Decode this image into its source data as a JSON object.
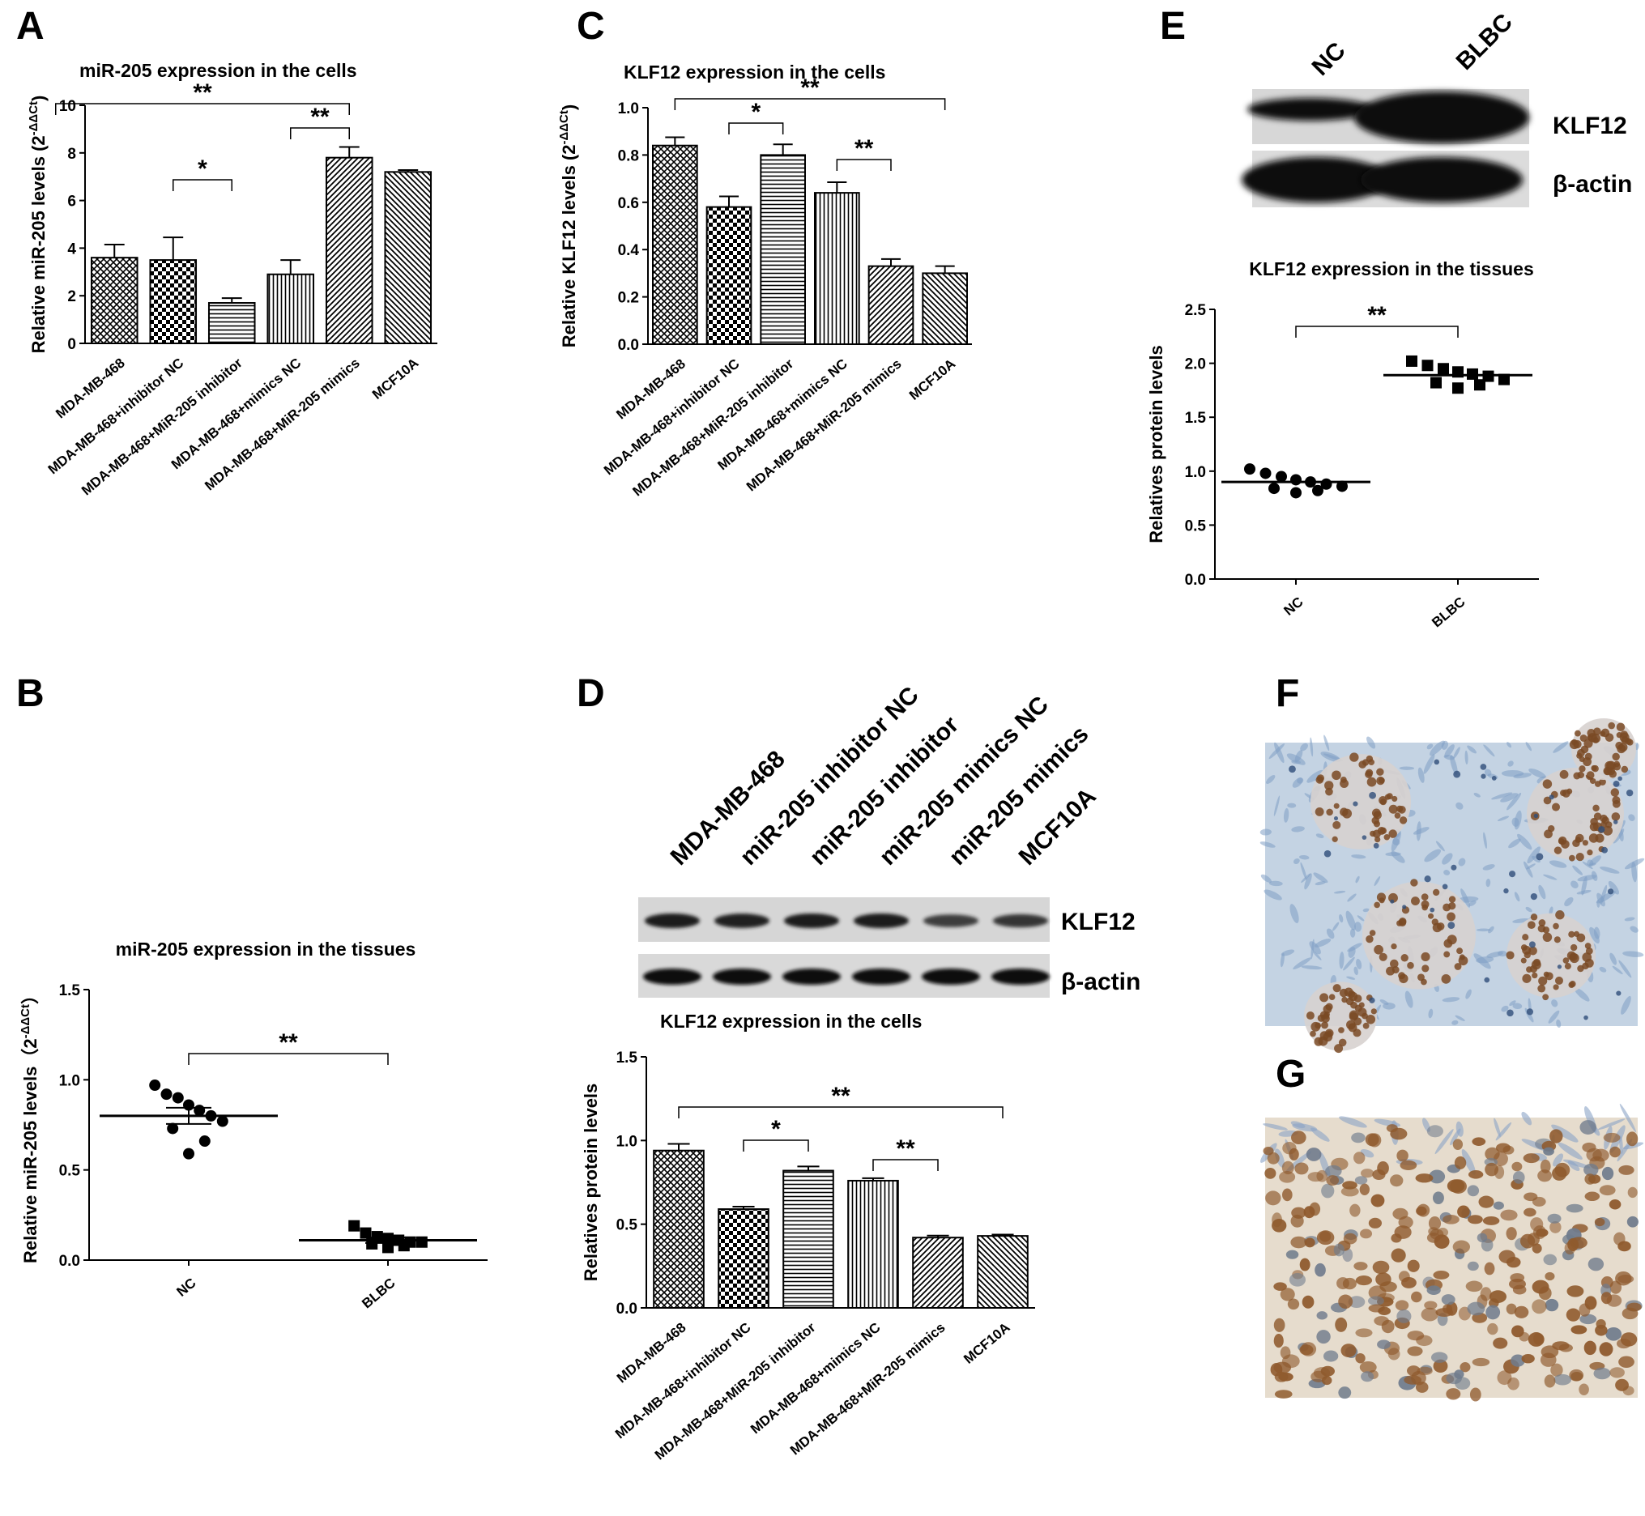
{
  "panels": {
    "A": {
      "letter": "A",
      "chart_data": {
        "type": "bar",
        "title": "miR-205 expression in the cells",
        "ylabel": "Relative miR-205 levels (2",
        "ylabel_sup": "-ΔΔCt",
        "ylabel_close": ")",
        "categories": [
          "MDA-MB-468",
          "MDA-MB-468+inhibitor NC",
          "MDA-MB-468+MiR-205 inhibitor",
          "MDA-MB-468+mimics NC",
          "MDA-MB-468+MiR-205 mimics",
          "MCF10A"
        ],
        "values": [
          3.6,
          3.5,
          1.7,
          2.9,
          7.8,
          7.2
        ],
        "errors": [
          0.55,
          0.95,
          0.2,
          0.6,
          0.45,
          0.08
        ],
        "ylim": [
          0,
          10
        ],
        "yticks": [
          "0",
          "2",
          "4",
          "6",
          "8",
          "10"
        ],
        "patterns": [
          "crosshatch",
          "checker",
          "hlines",
          "vlines",
          "diag",
          "diag2"
        ],
        "significance": [
          {
            "from": 2,
            "to": 3,
            "label": "*"
          },
          {
            "from": 4,
            "to": 5,
            "label": "**"
          },
          {
            "from": 0,
            "to": 5,
            "label": "**"
          }
        ]
      }
    },
    "B": {
      "letter": "B",
      "chart_data": {
        "type": "scatter",
        "title": "miR-205 expression in the tissues",
        "ylabel": "Relative miR-205 levels（2",
        "ylabel_sup": "-ΔΔCt",
        "ylabel_close": "）",
        "categories": [
          "NC",
          "BLBC"
        ],
        "series": [
          {
            "marker": "circle",
            "values": [
              0.97,
              0.92,
              0.9,
              0.86,
              0.83,
              0.8,
              0.77,
              0.73,
              0.66,
              0.59
            ],
            "mean": 0.8,
            "sem": 0.045
          },
          {
            "marker": "square",
            "values": [
              0.19,
              0.15,
              0.13,
              0.12,
              0.11,
              0.1,
              0.1,
              0.09,
              0.08,
              0.07
            ],
            "mean": 0.11,
            "sem": 0.015
          }
        ],
        "ylim": [
          0,
          1.5
        ],
        "yticks": [
          "0.0",
          "0.5",
          "1.0",
          "1.5"
        ],
        "significance": [
          {
            "from": 1,
            "to": 2,
            "label": "**"
          }
        ]
      }
    },
    "C": {
      "letter": "C",
      "chart_data": {
        "type": "bar",
        "title": "KLF12 expression in the cells",
        "ylabel": "Relative KLF12 levels (2",
        "ylabel_sup": "-ΔΔCt",
        "ylabel_close": ")",
        "categories": [
          "MDA-MB-468",
          "MDA-MB-468+inhibitor NC",
          "MDA-MB-468+MiR-205 inhibitor",
          "MDA-MB-468+mimics NC",
          "MDA-MB-468+MiR-205 mimics",
          "MCF10A"
        ],
        "values": [
          0.84,
          0.58,
          0.8,
          0.64,
          0.33,
          0.3
        ],
        "errors": [
          0.035,
          0.045,
          0.045,
          0.045,
          0.03,
          0.03
        ],
        "ylim": [
          0,
          1.0
        ],
        "yticks": [
          "0.0",
          "0.2",
          "0.4",
          "0.6",
          "0.8",
          "1.0"
        ],
        "patterns": [
          "crosshatch",
          "checker",
          "hlines",
          "vlines",
          "diag",
          "diag2"
        ],
        "significance": [
          {
            "from": 2,
            "to": 3,
            "label": "*"
          },
          {
            "from": 4,
            "to": 5,
            "label": "**"
          },
          {
            "from": 1,
            "to": 6,
            "label": "**"
          }
        ]
      }
    },
    "D": {
      "letter": "D",
      "lanes": [
        "MDA-MB-468",
        "miR-205 inhibitor NC",
        "miR-205 inhibitor",
        "miR-205 mimics NC",
        "miR-205 mimics",
        "MCF10A"
      ],
      "blots": [
        "KLF12",
        "β-actin"
      ],
      "chart_data": {
        "type": "bar",
        "title": "KLF12 expression in the cells",
        "ylabel": "Relatives protein levels",
        "categories": [
          "MDA-MB-468",
          "MDA-MB-468+inhibitor NC",
          "MDA-MB-468+MiR-205 inhibitor",
          "MDA-MB-468+mimics NC",
          "MDA-MB-468+MiR-205 mimics",
          "MCF10A"
        ],
        "values": [
          0.94,
          0.59,
          0.82,
          0.76,
          0.42,
          0.43
        ],
        "errors": [
          0.04,
          0.015,
          0.025,
          0.015,
          0.012,
          0.008
        ],
        "ylim": [
          0,
          1.5
        ],
        "yticks": [
          "0.0",
          "0.5",
          "1.0",
          "1.5"
        ],
        "patterns": [
          "crosshatch",
          "checker",
          "hlines",
          "vlines",
          "diag",
          "diag2"
        ],
        "significance": [
          {
            "from": 2,
            "to": 3,
            "label": "*"
          },
          {
            "from": 4,
            "to": 5,
            "label": "**"
          },
          {
            "from": 1,
            "to": 6,
            "label": "**"
          }
        ]
      }
    },
    "E": {
      "letter": "E",
      "lanes": [
        "NC",
        "BLBC"
      ],
      "blots": [
        "KLF12",
        "β-actin"
      ],
      "chart_data": {
        "type": "scatter",
        "title": "KLF12 expression in the tissues",
        "ylabel": "Relatives protein levels",
        "categories": [
          "NC",
          "BLBC"
        ],
        "series": [
          {
            "marker": "circle",
            "values": [
              1.02,
              0.98,
              0.95,
              0.92,
              0.9,
              0.88,
              0.86,
              0.84,
              0.82,
              0.8
            ],
            "mean": 0.9
          },
          {
            "marker": "square",
            "values": [
              2.02,
              1.98,
              1.95,
              1.92,
              1.9,
              1.88,
              1.85,
              1.82,
              1.8,
              1.77
            ],
            "mean": 1.89
          }
        ],
        "ylim": [
          0,
          2.5
        ],
        "yticks": [
          "0.0",
          "0.5",
          "1.0",
          "1.5",
          "2.0",
          "2.5"
        ],
        "significance": [
          {
            "from": 1,
            "to": 2,
            "label": "**"
          }
        ]
      }
    },
    "F": {
      "letter": "F"
    },
    "G": {
      "letter": "G"
    }
  }
}
